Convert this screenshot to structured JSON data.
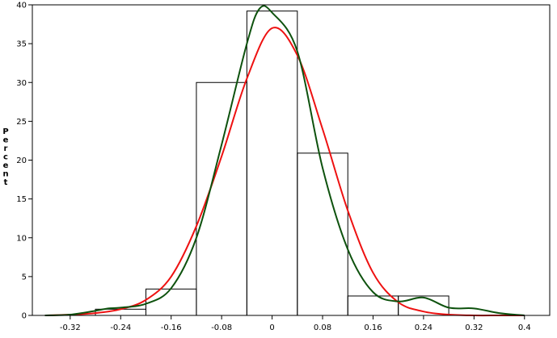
{
  "chart_data": {
    "type": "bar",
    "title": "",
    "xlabel": "",
    "ylabel": "Percent",
    "xlim": [
      -0.38,
      0.44
    ],
    "ylim": [
      0,
      40
    ],
    "x_ticks": [
      -0.32,
      -0.24,
      -0.16,
      -0.08,
      0,
      0.08,
      0.16,
      0.24,
      0.32,
      0.4
    ],
    "x_tick_labels": [
      "-0.32",
      "-0.24",
      "-0.16",
      "-0.08",
      "0",
      "0.08",
      "0.16",
      "0.24",
      "0.32",
      "0.4"
    ],
    "y_ticks": [
      0,
      5,
      10,
      15,
      20,
      25,
      30,
      35,
      40
    ],
    "y_tick_labels": [
      "0",
      "5",
      "10",
      "15",
      "20",
      "25",
      "30",
      "35",
      "40"
    ],
    "grid": false,
    "legend": "none",
    "histogram": {
      "bin_width": 0.08,
      "bin_midpoints": [
        -0.24,
        -0.16,
        -0.08,
        0,
        0.08,
        0.16,
        0.24,
        0.32
      ],
      "values": [
        0.8,
        3.4,
        30.0,
        39.2,
        20.9,
        2.5,
        2.5,
        0.0
      ],
      "color": "#000000"
    },
    "series": [
      {
        "type": "line",
        "color": "#ee1111",
        "x": [
          -0.36,
          -0.32,
          -0.28,
          -0.24,
          -0.2,
          -0.16,
          -0.12,
          -0.08,
          -0.04,
          0,
          0.04,
          0.08,
          0.12,
          0.16,
          0.2,
          0.24,
          0.28,
          0.32,
          0.36,
          0.4
        ],
        "y": [
          0.0,
          0.1,
          0.3,
          0.8,
          2.0,
          5.0,
          11.5,
          20.5,
          30.5,
          37.0,
          33.5,
          24.0,
          13.5,
          5.5,
          1.7,
          0.5,
          0.1,
          0.0,
          0.0,
          0.0
        ]
      },
      {
        "type": "line",
        "color": "#0e520e",
        "x": [
          -0.36,
          -0.32,
          -0.28,
          -0.26,
          -0.24,
          -0.2,
          -0.16,
          -0.12,
          -0.08,
          -0.04,
          -0.02,
          0,
          0.04,
          0.08,
          0.12,
          0.16,
          0.2,
          0.24,
          0.28,
          0.32,
          0.36,
          0.4
        ],
        "y": [
          0.0,
          0.1,
          0.6,
          0.9,
          1.0,
          1.5,
          3.5,
          10.0,
          22.0,
          35.0,
          39.5,
          39.0,
          34.0,
          19.0,
          8.5,
          3.0,
          1.8,
          2.3,
          1.0,
          0.9,
          0.3,
          0.0
        ]
      }
    ]
  }
}
